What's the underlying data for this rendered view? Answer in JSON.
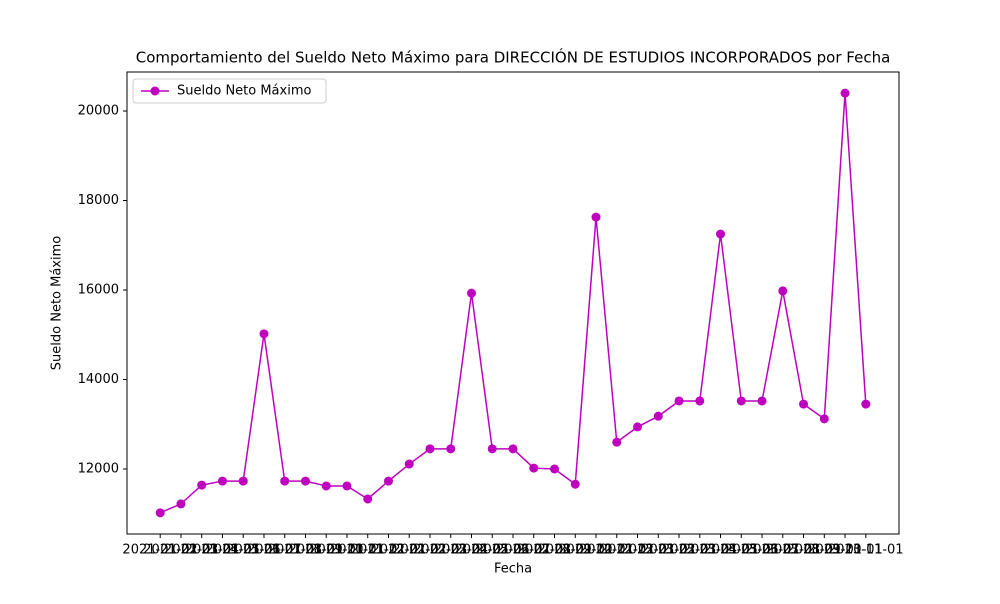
{
  "chart_data": {
    "type": "line",
    "title": "Comportamiento del Sueldo Neto Máximo para DIRECCIÓN DE ESTUDIOS INCORPORADOS por Fecha",
    "x_label": "Fecha",
    "y_label": "Sueldo Neto Máximo",
    "categories": [
      "2021-01-01",
      "2021-02-01",
      "2021-03-01",
      "2021-04-01",
      "2021-05-01",
      "2021-06-01",
      "2021-07-01",
      "2021-08-01",
      "2021-09-01",
      "2021-10-01",
      "2021-11-01",
      "2021-12-01",
      "2022-01-01",
      "2022-02-01",
      "2022-03-01",
      "2022-04-01",
      "2022-05-01",
      "2022-06-01",
      "2022-07-01",
      "2022-08-01",
      "2022-09-01",
      "2022-10-01",
      "2022-11-01",
      "2022-12-01",
      "2023-01-01",
      "2023-02-01",
      "2023-03-01",
      "2023-04-01",
      "2023-05-01",
      "2023-06-01",
      "2023-07-01",
      "2023-08-01",
      "2023-09-01",
      "2023-10-01",
      "2023-11-01"
    ],
    "series": [
      {
        "name": "Sueldo Neto Máximo",
        "color": "#bf00bf",
        "values": [
          11020,
          11220,
          11640,
          11730,
          11730,
          15020,
          11730,
          11730,
          11620,
          11620,
          11330,
          11730,
          12110,
          12450,
          12450,
          15930,
          12450,
          12450,
          12020,
          12000,
          11660,
          17630,
          12600,
          12940,
          13180,
          13520,
          13520,
          17250,
          13520,
          13520,
          15980,
          13450,
          13120,
          20400,
          13450
        ]
      }
    ],
    "xlim": [
      -1.6,
      35.6
    ],
    "ylim": [
      10547,
      20872
    ],
    "yticks": [
      12000,
      14000,
      16000,
      18000,
      20000
    ],
    "legend": "upper left"
  }
}
